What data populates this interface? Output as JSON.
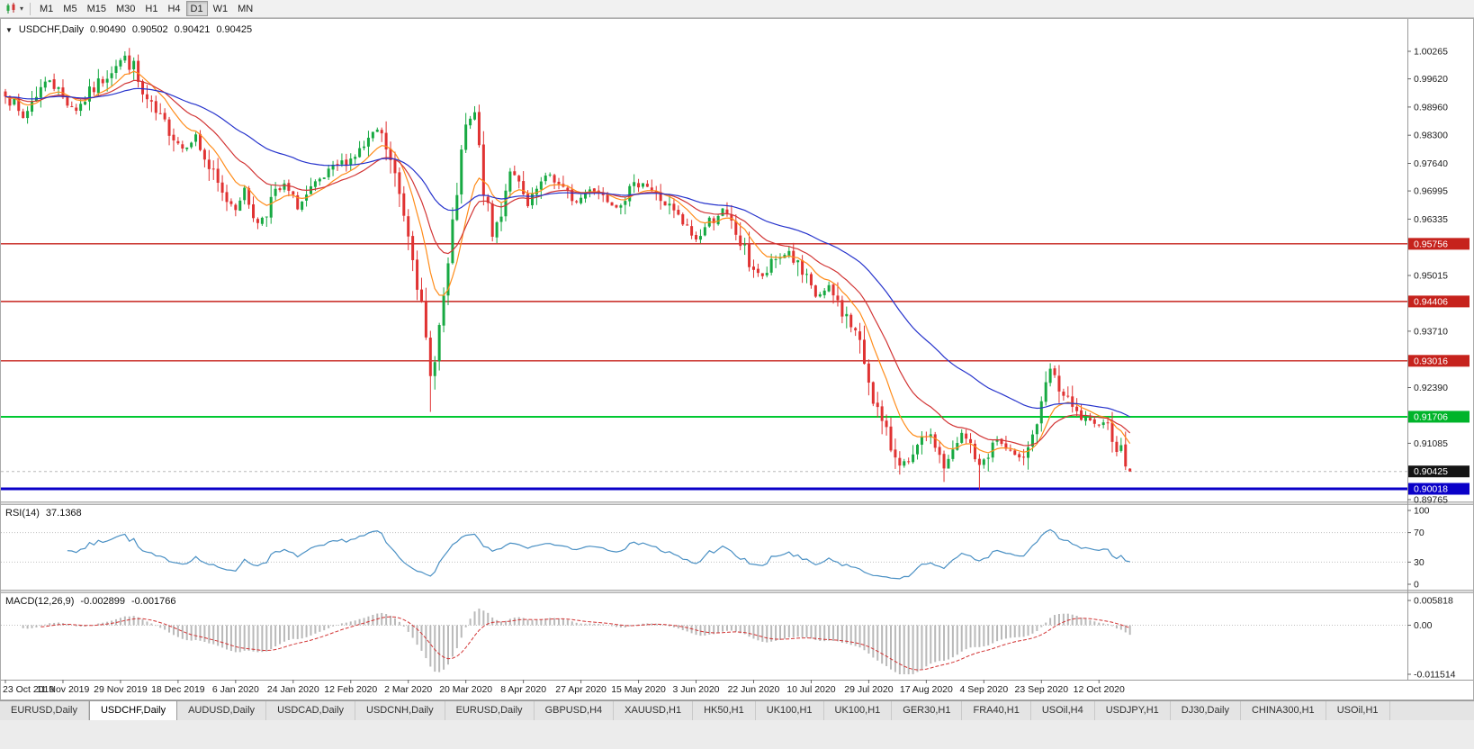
{
  "toolbar": {
    "chart_type_icon": "candlestick-chart-icon",
    "timeframes": [
      {
        "label": "M1",
        "active": false
      },
      {
        "label": "M5",
        "active": false
      },
      {
        "label": "M15",
        "active": false
      },
      {
        "label": "M30",
        "active": false
      },
      {
        "label": "H1",
        "active": false
      },
      {
        "label": "H4",
        "active": false
      },
      {
        "label": "D1",
        "active": true
      },
      {
        "label": "W1",
        "active": false
      },
      {
        "label": "MN",
        "active": false
      }
    ]
  },
  "symbol_header": {
    "symbol": "USDCHF,Daily",
    "open": "0.90490",
    "high": "0.90502",
    "low": "0.90421",
    "close": "0.90425"
  },
  "indicators": {
    "rsi": {
      "label": "RSI(14)",
      "value": "37.1368",
      "scale": [
        "100",
        "70",
        "30",
        "0"
      ],
      "levels": [
        70,
        30
      ],
      "color": "#4a90c4"
    },
    "macd": {
      "label": "MACD(12,26,9)",
      "main_value": "-0.002899",
      "signal_value": "-0.001766",
      "scale": {
        "max": "0.005818",
        "zero": "0.00",
        "min": "-0.011514"
      },
      "histogram_color": "#b9b9b9",
      "signal_color": "#d23535"
    }
  },
  "price_axis": {
    "ticks": [
      "1.00265",
      "0.99620",
      "0.98960",
      "0.98300",
      "0.97640",
      "0.96995",
      "0.96335",
      "0.95015",
      "0.93710",
      "0.92390",
      "0.91085",
      "0.89765"
    ],
    "special_labels": [
      {
        "text": "0.95756",
        "price": 0.95756,
        "bg": "#c6221c",
        "fg": "#ffffff"
      },
      {
        "text": "0.94406",
        "price": 0.94406,
        "bg": "#c6221c",
        "fg": "#ffffff"
      },
      {
        "text": "0.93016",
        "price": 0.93016,
        "bg": "#c6221c",
        "fg": "#ffffff"
      },
      {
        "text": "0.91706",
        "price": 0.91706,
        "bg": "#00b42a",
        "fg": "#ffffff"
      },
      {
        "text": "0.90425",
        "price": 0.90425,
        "bg": "#141414",
        "fg": "#ffffff"
      },
      {
        "text": "0.90018",
        "price": 0.90018,
        "bg": "#0a00c8",
        "fg": "#ffffff"
      }
    ]
  },
  "chart_data": {
    "type": "candlestick",
    "symbol": "USDCHF",
    "timeframe": "Daily",
    "bars": 255,
    "label_every_bars": 13,
    "price_range_visible": [
      0.8972,
      1.0098
    ],
    "date_labels": [
      "23 Oct 2019",
      "11 Nov 2019",
      "29 Nov 2019",
      "18 Dec 2019",
      "6 Jan 2020",
      "24 Jan 2020",
      "12 Feb 2020",
      "2 Mar 2020",
      "20 Mar 2020",
      "8 Apr 2020",
      "27 Apr 2020",
      "15 May 2020",
      "3 Jun 2020",
      "22 Jun 2020",
      "10 Jul 2020",
      "29 Jul 2020",
      "17 Aug 2020",
      "4 Sep 2020",
      "23 Sep 2020",
      "12 Oct 2020"
    ],
    "last_candle": {
      "open": 0.9049,
      "high": 0.90502,
      "low": 0.90421,
      "close": 0.90425
    },
    "close_anchors": [
      [
        0,
        0.9935
      ],
      [
        2,
        0.9895
      ],
      [
        4,
        0.987
      ],
      [
        7,
        0.993
      ],
      [
        10,
        0.9962
      ],
      [
        13,
        0.9918
      ],
      [
        16,
        0.989
      ],
      [
        19,
        0.9928
      ],
      [
        22,
        0.9962
      ],
      [
        25,
        0.9998
      ],
      [
        27,
        1.0012
      ],
      [
        29,
        0.9985
      ],
      [
        31,
        0.992
      ],
      [
        34,
        0.9878
      ],
      [
        37,
        0.9845
      ],
      [
        40,
        0.98
      ],
      [
        43,
        0.9825
      ],
      [
        46,
        0.9752
      ],
      [
        49,
        0.9688
      ],
      [
        52,
        0.9662
      ],
      [
        54,
        0.97
      ],
      [
        57,
        0.9622
      ],
      [
        60,
        0.9678
      ],
      [
        63,
        0.9712
      ],
      [
        66,
        0.9662
      ],
      [
        69,
        0.9698
      ],
      [
        72,
        0.9728
      ],
      [
        75,
        0.9758
      ],
      [
        78,
        0.9775
      ],
      [
        81,
        0.9802
      ],
      [
        84,
        0.9842
      ],
      [
        86,
        0.98
      ],
      [
        88,
        0.973
      ],
      [
        90,
        0.965
      ],
      [
        92,
        0.956
      ],
      [
        94,
        0.942
      ],
      [
        96,
        0.9262
      ],
      [
        98,
        0.938
      ],
      [
        100,
        0.952
      ],
      [
        102,
        0.97
      ],
      [
        104,
        0.9848
      ],
      [
        106,
        0.9878
      ],
      [
        108,
        0.9705
      ],
      [
        110,
        0.9592
      ],
      [
        112,
        0.9655
      ],
      [
        114,
        0.9755
      ],
      [
        116,
        0.9705
      ],
      [
        118,
        0.9662
      ],
      [
        120,
        0.97
      ],
      [
        123,
        0.9738
      ],
      [
        126,
        0.97
      ],
      [
        129,
        0.9672
      ],
      [
        132,
        0.9708
      ],
      [
        135,
        0.969
      ],
      [
        138,
        0.9665
      ],
      [
        141,
        0.97
      ],
      [
        144,
        0.9722
      ],
      [
        147,
        0.969
      ],
      [
        150,
        0.966
      ],
      [
        153,
        0.962
      ],
      [
        156,
        0.9585
      ],
      [
        159,
        0.9628
      ],
      [
        162,
        0.9652
      ],
      [
        165,
        0.96
      ],
      [
        168,
        0.9532
      ],
      [
        171,
        0.9496
      ],
      [
        174,
        0.9538
      ],
      [
        177,
        0.9558
      ],
      [
        180,
        0.95
      ],
      [
        183,
        0.9452
      ],
      [
        186,
        0.947
      ],
      [
        189,
        0.942
      ],
      [
        192,
        0.9368
      ],
      [
        194,
        0.93
      ],
      [
        196,
        0.922
      ],
      [
        198,
        0.915
      ],
      [
        200,
        0.91
      ],
      [
        202,
        0.907
      ],
      [
        204,
        0.9056
      ],
      [
        206,
        0.909
      ],
      [
        208,
        0.9128
      ],
      [
        210,
        0.9108
      ],
      [
        212,
        0.9052
      ],
      [
        214,
        0.9082
      ],
      [
        216,
        0.9128
      ],
      [
        218,
        0.9105
      ],
      [
        220,
        0.9052
      ],
      [
        222,
        0.909
      ],
      [
        224,
        0.9118
      ],
      [
        226,
        0.9094
      ],
      [
        228,
        0.9076
      ],
      [
        230,
        0.909
      ],
      [
        232,
        0.9128
      ],
      [
        234,
        0.9188
      ],
      [
        236,
        0.9282
      ],
      [
        238,
        0.924
      ],
      [
        240,
        0.92
      ],
      [
        242,
        0.9175
      ],
      [
        244,
        0.916
      ],
      [
        246,
        0.915
      ],
      [
        248,
        0.9164
      ],
      [
        250,
        0.913
      ],
      [
        252,
        0.9085
      ],
      [
        254,
        0.90425
      ]
    ],
    "forced_extremes": [
      [
        27,
        "high",
        1.00265
      ],
      [
        57,
        "low",
        0.961
      ],
      [
        84,
        "high",
        0.9848
      ],
      [
        96,
        "low",
        0.9182
      ],
      [
        106,
        "high",
        0.9898
      ],
      [
        212,
        "low",
        0.9018
      ],
      [
        220,
        "low",
        0.9
      ],
      [
        236,
        "high",
        0.9296
      ]
    ],
    "horizontal_lines": [
      {
        "price": 0.95756,
        "color": "#c6221c",
        "width": 1.4,
        "style": "solid"
      },
      {
        "price": 0.94406,
        "color": "#c6221c",
        "width": 1.4,
        "style": "solid"
      },
      {
        "price": 0.93016,
        "color": "#c6221c",
        "width": 1.4,
        "style": "solid"
      },
      {
        "price": 0.91706,
        "color": "#00c832",
        "width": 2,
        "style": "solid"
      },
      {
        "price": 0.90018,
        "color": "#0a00c8",
        "width": 3,
        "style": "solid"
      }
    ],
    "moving_averages": [
      {
        "period": 10,
        "type": "ema",
        "color": "#ff8c1a"
      },
      {
        "period": 21,
        "type": "ema",
        "color": "#d23535"
      },
      {
        "period": 50,
        "type": "ema",
        "color": "#2633cc"
      }
    ],
    "candle_up_color": "#17a942",
    "candle_down_color": "#e03232",
    "rsi_period": 14,
    "macd_params": [
      12,
      26,
      9
    ]
  },
  "tabs": [
    {
      "label": "EURUSD,Daily",
      "active": false
    },
    {
      "label": "USDCHF,Daily",
      "active": true
    },
    {
      "label": "AUDUSD,Daily",
      "active": false
    },
    {
      "label": "USDCAD,Daily",
      "active": false
    },
    {
      "label": "USDCNH,Daily",
      "active": false
    },
    {
      "label": "EURUSD,Daily",
      "active": false
    },
    {
      "label": "GBPUSD,H4",
      "active": false
    },
    {
      "label": "XAUUSD,H1",
      "active": false
    },
    {
      "label": "HK50,H1",
      "active": false
    },
    {
      "label": "UK100,H1",
      "active": false
    },
    {
      "label": "UK100,H1",
      "active": false
    },
    {
      "label": "GER30,H1",
      "active": false
    },
    {
      "label": "FRA40,H1",
      "active": false
    },
    {
      "label": "USOil,H4",
      "active": false
    },
    {
      "label": "USDJPY,H1",
      "active": false
    },
    {
      "label": "DJ30,Daily",
      "active": false
    },
    {
      "label": "CHINA300,H1",
      "active": false
    },
    {
      "label": "USOil,H1",
      "active": false
    }
  ]
}
